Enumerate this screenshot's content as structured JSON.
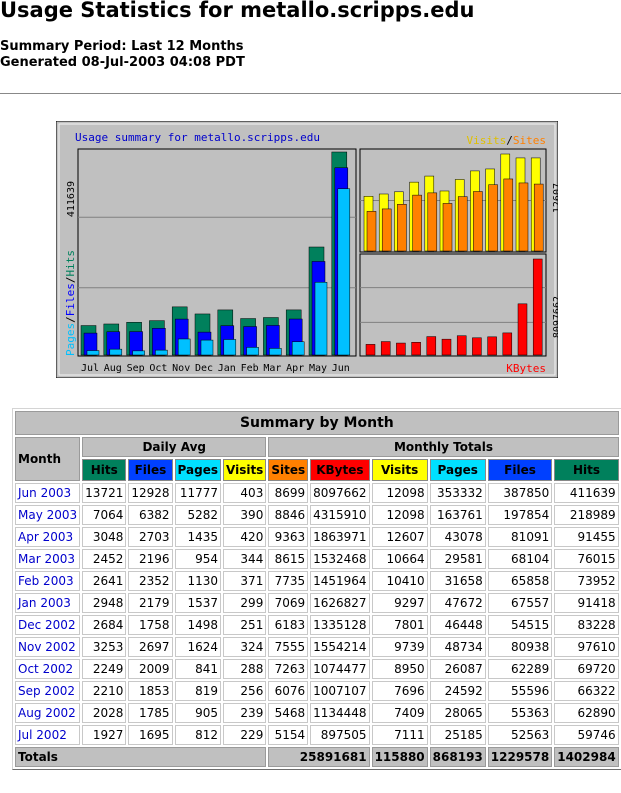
{
  "header": {
    "title": "Usage Statistics for metallo.scripps.edu",
    "summary_period": "Summary Period: Last 12 Months",
    "generated": "Generated 08-Jul-2003 04:08 PDT"
  },
  "chart": {
    "title": "Usage summary for metallo.scripps.edu",
    "legend_visits": "Visits",
    "legend_sep": "/",
    "legend_sites": "Sites",
    "legend_kbytes": "KBytes",
    "left_label_pages": "Pages",
    "left_label_files": "Files",
    "left_label_hits": "Hits",
    "left_max_label": "411639",
    "right_top_max_label": "12607",
    "right_bottom_max_label": "8097662"
  },
  "colors": {
    "hits": "#00805c",
    "files": "#0000ff",
    "pages": "#00c0ff",
    "visits": "#ffff00",
    "sites": "#ff8000",
    "kbytes": "#ff0000",
    "panel": "#c0c0c0",
    "chart_title": "#0000cc"
  },
  "chart_data": {
    "type": "bar",
    "categories": [
      "Jul",
      "Aug",
      "Sep",
      "Oct",
      "Nov",
      "Dec",
      "Jan",
      "Feb",
      "Mar",
      "Apr",
      "May",
      "Jun"
    ],
    "series": [
      {
        "name": "Hits",
        "values": [
          59746,
          62890,
          66322,
          69720,
          97610,
          83228,
          91418,
          73952,
          76015,
          91455,
          218989,
          411639
        ]
      },
      {
        "name": "Files",
        "values": [
          52563,
          55363,
          55596,
          62289,
          80938,
          54515,
          67557,
          65858,
          68104,
          81091,
          197854,
          387850
        ]
      },
      {
        "name": "Pages",
        "values": [
          25185,
          28065,
          24592,
          26087,
          48734,
          46448,
          47672,
          31658,
          29581,
          43078,
          163761,
          353332
        ]
      },
      {
        "name": "Visits",
        "values": [
          7111,
          7409,
          7696,
          8950,
          9739,
          7801,
          9297,
          10410,
          10664,
          12607,
          12098,
          12098
        ]
      },
      {
        "name": "Sites",
        "values": [
          5154,
          5468,
          6076,
          7263,
          7555,
          6183,
          7069,
          7735,
          8615,
          9363,
          8846,
          8699
        ]
      },
      {
        "name": "KBytes",
        "values": [
          897505,
          1134448,
          1007107,
          1074477,
          1554214,
          1335128,
          1626827,
          1451964,
          1532468,
          1863971,
          4315910,
          8097662
        ]
      }
    ],
    "ylim_left": [
      0,
      411639
    ],
    "ylim_visits_sites": [
      0,
      12607
    ],
    "ylim_kbytes": [
      0,
      8097662
    ]
  },
  "table": {
    "title": "Summary by Month",
    "month_header": "Month",
    "daily_avg_header": "Daily Avg",
    "monthly_totals_header": "Monthly Totals",
    "daily_cols": [
      "Hits",
      "Files",
      "Pages",
      "Visits"
    ],
    "monthly_cols": [
      "Sites",
      "KBytes",
      "Visits",
      "Pages",
      "Files",
      "Hits"
    ],
    "rows": [
      {
        "month": "Jun 2003",
        "cells": [
          "13721",
          "12928",
          "11777",
          "403",
          "8699",
          "8097662",
          "12098",
          "353332",
          "387850",
          "411639"
        ]
      },
      {
        "month": "May 2003",
        "cells": [
          "7064",
          "6382",
          "5282",
          "390",
          "8846",
          "4315910",
          "12098",
          "163761",
          "197854",
          "218989"
        ]
      },
      {
        "month": "Apr 2003",
        "cells": [
          "3048",
          "2703",
          "1435",
          "420",
          "9363",
          "1863971",
          "12607",
          "43078",
          "81091",
          "91455"
        ]
      },
      {
        "month": "Mar 2003",
        "cells": [
          "2452",
          "2196",
          "954",
          "344",
          "8615",
          "1532468",
          "10664",
          "29581",
          "68104",
          "76015"
        ]
      },
      {
        "month": "Feb 2003",
        "cells": [
          "2641",
          "2352",
          "1130",
          "371",
          "7735",
          "1451964",
          "10410",
          "31658",
          "65858",
          "73952"
        ]
      },
      {
        "month": "Jan 2003",
        "cells": [
          "2948",
          "2179",
          "1537",
          "299",
          "7069",
          "1626827",
          "9297",
          "47672",
          "67557",
          "91418"
        ]
      },
      {
        "month": "Dec 2002",
        "cells": [
          "2684",
          "1758",
          "1498",
          "251",
          "6183",
          "1335128",
          "7801",
          "46448",
          "54515",
          "83228"
        ]
      },
      {
        "month": "Nov 2002",
        "cells": [
          "3253",
          "2697",
          "1624",
          "324",
          "7555",
          "1554214",
          "9739",
          "48734",
          "80938",
          "97610"
        ]
      },
      {
        "month": "Oct 2002",
        "cells": [
          "2249",
          "2009",
          "841",
          "288",
          "7263",
          "1074477",
          "8950",
          "26087",
          "62289",
          "69720"
        ]
      },
      {
        "month": "Sep 2002",
        "cells": [
          "2210",
          "1853",
          "819",
          "256",
          "6076",
          "1007107",
          "7696",
          "24592",
          "55596",
          "66322"
        ]
      },
      {
        "month": "Aug 2002",
        "cells": [
          "2028",
          "1785",
          "905",
          "239",
          "5468",
          "1134448",
          "7409",
          "28065",
          "55363",
          "62890"
        ]
      },
      {
        "month": "Jul 2002",
        "cells": [
          "1927",
          "1695",
          "812",
          "229",
          "5154",
          "897505",
          "7111",
          "25185",
          "52563",
          "59746"
        ]
      }
    ],
    "totals_label": "Totals",
    "totals": [
      "25891681",
      "115880",
      "868193",
      "1229578",
      "1402984"
    ]
  }
}
